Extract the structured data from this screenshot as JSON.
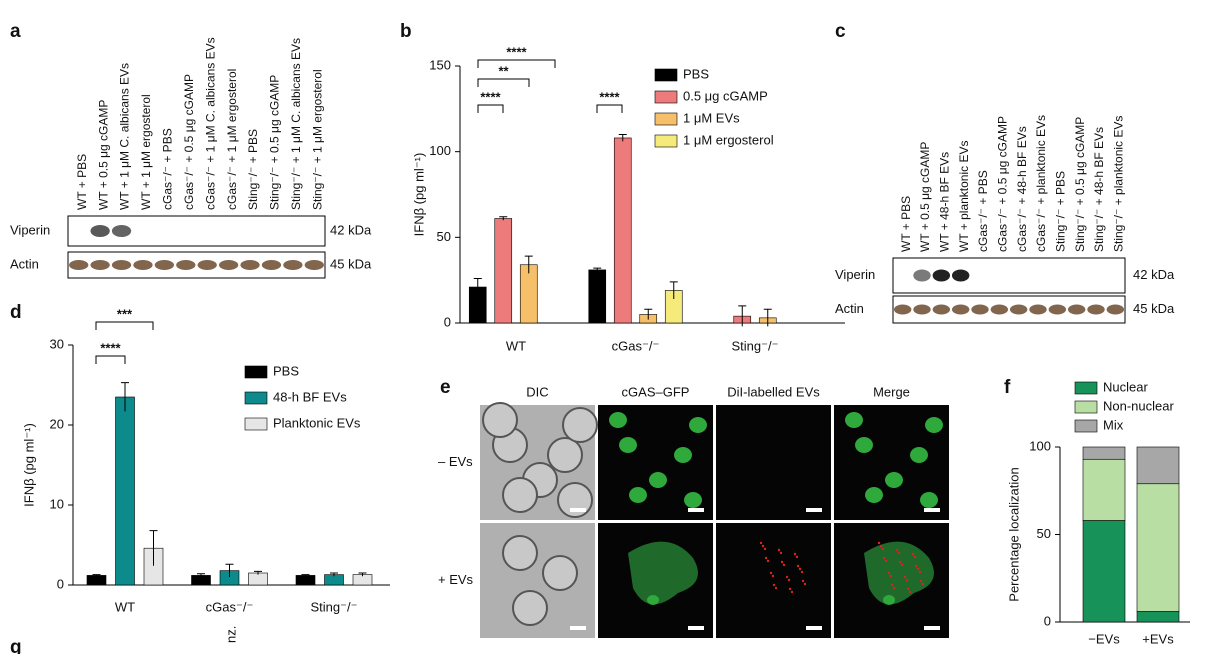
{
  "panel_letters": [
    "a",
    "b",
    "c",
    "d",
    "e",
    "f",
    "g"
  ],
  "fragment": "nz.",
  "blot_a": {
    "lanes": [
      "WT + PBS",
      "WT + 0.5 μg cGAMP",
      "WT + 1 μM C. albicans EVs",
      "WT + 1 μM ergosterol",
      "cGas⁻/⁻ + PBS",
      "cGas⁻/⁻ + 0.5 μg cGAMP",
      "cGas⁻/⁻ + 1 μM C. albicans EVs",
      "cGas⁻/⁻ + 1 μM ergosterol",
      "Sting⁻/⁻ + PBS",
      "Sting⁻/⁻ + 0.5 μg cGAMP",
      "Sting⁻/⁻ + 1 μM C. albicans EVs",
      "Sting⁻/⁻ + 1 μM ergosterol"
    ],
    "rows": [
      {
        "name": "Viperin",
        "size": "42 kDa"
      },
      {
        "name": "Actin",
        "size": "45 kDa"
      }
    ]
  },
  "blot_c": {
    "lanes": [
      "WT + PBS",
      "WT + 0.5 μg cGAMP",
      "WT + 48-h BF EVs",
      "WT + planktonic EVs",
      "cGas⁻/⁻ + PBS",
      "cGas⁻/⁻ + 0.5 μg cGAMP",
      "cGas⁻/⁻ + 48-h BF EVs",
      "cGas⁻/⁻ + planktonic EVs",
      "Sting⁻/⁻ + PBS",
      "Sting⁻/⁻ + 0.5 μg cGAMP",
      "Sting⁻/⁻ + 48-h BF EVs",
      "Sting⁻/⁻ + planktonic EVs"
    ],
    "rows": [
      {
        "name": "Viperin",
        "size": "42 kDa"
      },
      {
        "name": "Actin",
        "size": "45 kDa"
      }
    ]
  },
  "images_e": {
    "columns": [
      "DIC",
      "cGAS–GFP",
      "DiI-labelled EVs",
      "Merge"
    ],
    "rows": [
      "– EVs",
      "+ EVs"
    ]
  },
  "chart_data": [
    {
      "type": "bar",
      "y_label": "IFNβ (pg ml⁻¹)",
      "categories": [
        "WT",
        "cGas⁻/⁻",
        "Sting⁻/⁻"
      ],
      "series": [
        {
          "name": "PBS",
          "color": "#000000",
          "values": [
            21,
            31,
            0
          ],
          "errors": [
            5,
            1,
            0
          ]
        },
        {
          "name": "0.5 μg cGAMP",
          "color": "#ee7b7b",
          "values": [
            61,
            108,
            4
          ],
          "errors": [
            1,
            2,
            6
          ]
        },
        {
          "name": "1 μM EVs",
          "color": "#f6bf6a",
          "values": [
            34,
            5,
            3
          ],
          "errors": [
            5,
            3,
            5
          ]
        },
        {
          "name": "1 μM ergosterol",
          "color": "#f6ea7a",
          "values": [
            0,
            19,
            0
          ],
          "errors": [
            0,
            5,
            0
          ]
        }
      ],
      "ylim": [
        0,
        150
      ],
      "yticks": [
        0,
        50,
        100,
        150
      ],
      "annotations": [
        "****",
        "**",
        "****",
        "****"
      ]
    },
    {
      "type": "bar",
      "y_label": "IFNβ (pg ml⁻¹)",
      "categories": [
        "WT",
        "cGas⁻/⁻",
        "Sting⁻/⁻"
      ],
      "series": [
        {
          "name": "PBS",
          "color": "#000000",
          "values": [
            1.2,
            1.2,
            1.2
          ],
          "errors": [
            0.1,
            0.2,
            0.1
          ]
        },
        {
          "name": "48-h BF EVs",
          "color": "#0d8a8c",
          "values": [
            23.5,
            1.8,
            1.3
          ],
          "errors": [
            1.8,
            0.8,
            0.2
          ]
        },
        {
          "name": "Planktonic EVs",
          "color": "#e6e6e6",
          "values": [
            4.6,
            1.5,
            1.3
          ],
          "errors": [
            2.2,
            0.2,
            0.2
          ]
        }
      ],
      "ylim": [
        0,
        30
      ],
      "yticks": [
        0,
        10,
        20,
        30
      ],
      "annotations": [
        "****",
        "***"
      ]
    },
    {
      "type": "stacked_bar",
      "y_label": "Percentage localization",
      "categories": [
        "−EVs",
        "+EVs"
      ],
      "series": [
        {
          "name": "Nuclear",
          "color": "#17935a",
          "values": [
            58,
            6
          ]
        },
        {
          "name": "Non-nuclear",
          "color": "#b8dea4",
          "values": [
            35,
            73
          ]
        },
        {
          "name": "Mix",
          "color": "#a7a7a7",
          "values": [
            7,
            21
          ]
        }
      ],
      "ylim": [
        0,
        100
      ],
      "yticks": [
        0,
        50,
        100
      ]
    }
  ]
}
